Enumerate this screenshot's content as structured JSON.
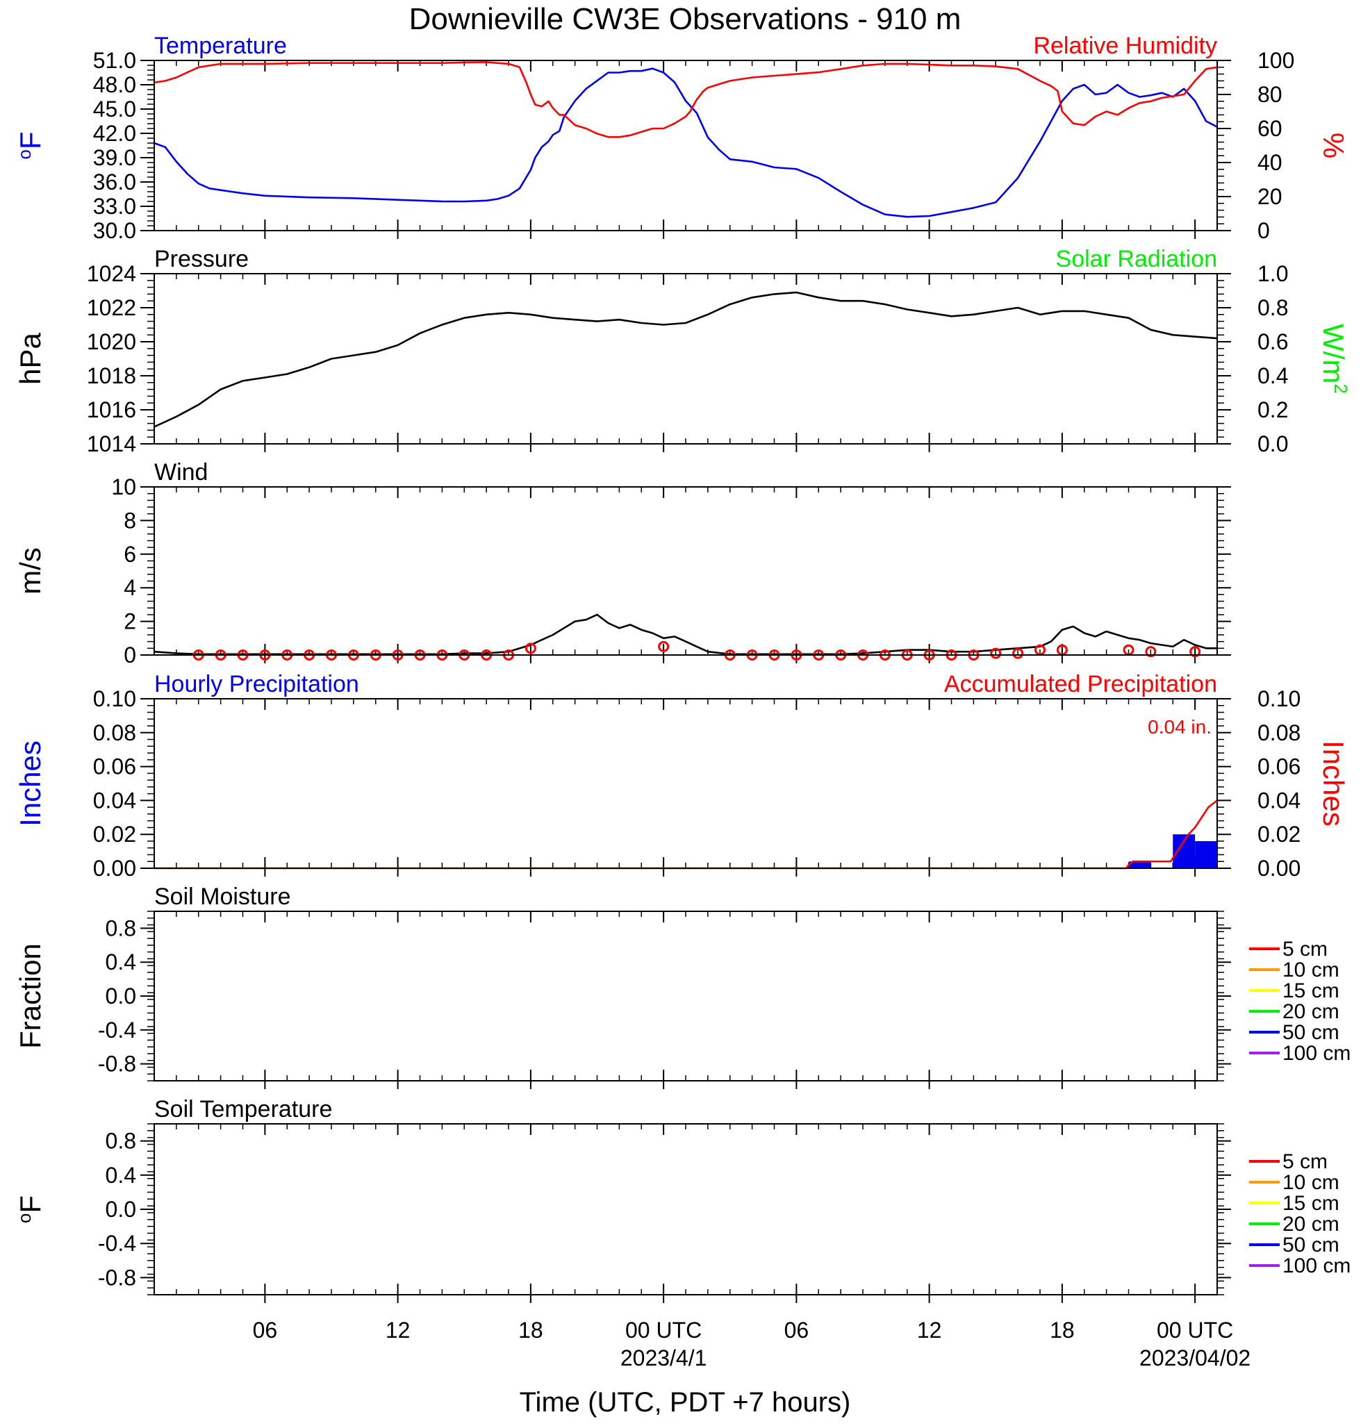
{
  "title": "Downieville CW3E Observations - 910 m",
  "xaxis": {
    "title": "Time (UTC, PDT +7 hours)",
    "range_hours": [
      -23,
      25
    ],
    "tick_hours": [
      -18,
      -12,
      -6,
      0,
      6,
      12,
      18,
      24
    ],
    "tick_labels": [
      "06",
      "12",
      "18",
      "00 UTC",
      "06",
      "12",
      "18",
      "00 UTC"
    ],
    "date_labels": [
      {
        "hour": 0,
        "text": "2023/4/1"
      },
      {
        "hour": 24,
        "text": "2023/04/02"
      }
    ]
  },
  "legend_soil": {
    "entries": [
      "5 cm",
      "10 cm",
      "15 cm",
      "20 cm",
      "50 cm",
      "100 cm"
    ],
    "colors": [
      "#ff0000",
      "#ff9900",
      "#ffff00",
      "#00ee00",
      "#0000ee",
      "#a020f0"
    ]
  },
  "chart_data": [
    {
      "type": "line",
      "title_left": "Temperature",
      "title_right": "Relative Humidity",
      "ylabel_left": "oF",
      "ylabel_right": "%",
      "ylim_left": [
        30,
        51
      ],
      "ylim_right": [
        0,
        100
      ],
      "yticks_left": [
        "30.0",
        "33.0",
        "36.0",
        "39.0",
        "42.0",
        "45.0",
        "48.0",
        "51.0"
      ],
      "yticks_right": [
        "0",
        "20",
        "40",
        "60",
        "80",
        "100"
      ],
      "series": [
        {
          "name": "Temperature",
          "color": "#0000ee",
          "axis": "left",
          "x": [
            -23,
            -22.5,
            -22,
            -21.5,
            -21,
            -20.5,
            -20,
            -19.5,
            -19,
            -18,
            -16,
            -14,
            -12,
            -10,
            -9,
            -8,
            -7.5,
            -7,
            -6.5,
            -6,
            -5.8,
            -5.5,
            -5.2,
            -5,
            -4.7,
            -4.5,
            -4,
            -3.5,
            -3,
            -2.5,
            -2,
            -1.5,
            -1,
            -0.5,
            0,
            0.5,
            1,
            1.5,
            2,
            2.5,
            3,
            4,
            5,
            6,
            7,
            8,
            9,
            10,
            11,
            12,
            13,
            14,
            15,
            16,
            17,
            18,
            18.5,
            19,
            19.5,
            20,
            20.5,
            21,
            21.5,
            22,
            22.5,
            23,
            23.5,
            24,
            24.5,
            25
          ],
          "y": [
            40.8,
            40.3,
            38.5,
            37.0,
            35.8,
            35.2,
            35.0,
            34.8,
            34.6,
            34.3,
            34.1,
            34.0,
            33.8,
            33.6,
            33.6,
            33.7,
            33.9,
            34.3,
            35.2,
            37.5,
            39.0,
            40.3,
            41.0,
            41.8,
            42.3,
            44.0,
            46.0,
            47.5,
            48.5,
            49.5,
            49.5,
            49.7,
            49.7,
            50.0,
            49.5,
            48.3,
            46.0,
            44.5,
            41.5,
            40.0,
            38.8,
            38.5,
            37.8,
            37.6,
            36.5,
            34.8,
            33.2,
            32.0,
            31.7,
            31.8,
            32.3,
            32.8,
            33.5,
            36.5,
            41.0,
            46.0,
            47.5,
            48.0,
            46.8,
            47.0,
            48.0,
            47.0,
            46.5,
            46.7,
            47.0,
            46.5,
            47.5,
            46.0,
            43.5,
            42.8
          ]
        },
        {
          "name": "Relative Humidity",
          "color": "#ff0000",
          "axis": "right",
          "x": [
            -23,
            -22.5,
            -22,
            -21,
            -20,
            -18,
            -16,
            -14,
            -12,
            -10,
            -9,
            -8,
            -7,
            -6.5,
            -6.2,
            -6,
            -5.8,
            -5.5,
            -5.2,
            -5,
            -4.7,
            -4.5,
            -4,
            -3.5,
            -3,
            -2.5,
            -2,
            -1.5,
            -1,
            -0.5,
            0,
            0.5,
            1,
            1.2,
            1.5,
            1.8,
            2,
            2.5,
            3,
            4,
            5,
            6,
            7,
            8,
            9,
            10,
            11,
            12,
            13,
            14,
            15,
            16,
            17,
            17.5,
            17.8,
            18,
            18.5,
            19,
            19.5,
            20,
            20.5,
            21,
            21.5,
            22,
            22.5,
            23,
            23.5,
            24,
            24.5,
            25
          ],
          "y": [
            87,
            88,
            90,
            96,
            98,
            98,
            98.5,
            98.5,
            98.5,
            98.5,
            98.8,
            99,
            98,
            96,
            87,
            80,
            74,
            73,
            76,
            72,
            68,
            68,
            62,
            60,
            57,
            55,
            55,
            56,
            58,
            60,
            60,
            63,
            67,
            70,
            77,
            82,
            84,
            86,
            88,
            90,
            91,
            92,
            93,
            95,
            97,
            98,
            98,
            97.5,
            97,
            97,
            96.5,
            95,
            88,
            85,
            82,
            70,
            63,
            62,
            67,
            70,
            68,
            72,
            75,
            76,
            78,
            79,
            80,
            88,
            95,
            96
          ]
        }
      ]
    },
    {
      "type": "line",
      "title_left": "Pressure",
      "title_right": "Solar Radiation",
      "ylabel_left": "hPa",
      "ylabel_right": "W/m2",
      "ylim_left": [
        1014,
        1024
      ],
      "ylim_right": [
        0,
        1
      ],
      "yticks_left": [
        "1014",
        "1016",
        "1018",
        "1020",
        "1022",
        "1024"
      ],
      "yticks_right": [
        "0.0",
        "0.2",
        "0.4",
        "0.6",
        "0.8",
        "1.0"
      ],
      "series": [
        {
          "name": "Pressure",
          "color": "#000000",
          "axis": "left",
          "x": [
            -23,
            -22,
            -21,
            -20,
            -19,
            -18,
            -17,
            -16,
            -15,
            -14,
            -13,
            -12,
            -11,
            -10,
            -9,
            -8,
            -7,
            -6,
            -5,
            -4,
            -3,
            -2,
            -1,
            0,
            1,
            2,
            3,
            4,
            5,
            6,
            7,
            8,
            9,
            10,
            11,
            12,
            13,
            14,
            15,
            16,
            17,
            18,
            19,
            20,
            21,
            22,
            23,
            24,
            25
          ],
          "y": [
            1015.0,
            1015.6,
            1016.3,
            1017.2,
            1017.7,
            1017.9,
            1018.1,
            1018.5,
            1019.0,
            1019.2,
            1019.4,
            1019.8,
            1020.5,
            1021.0,
            1021.4,
            1021.6,
            1021.7,
            1021.6,
            1021.4,
            1021.3,
            1021.2,
            1021.3,
            1021.1,
            1021.0,
            1021.1,
            1021.6,
            1022.2,
            1022.6,
            1022.8,
            1022.9,
            1022.6,
            1022.4,
            1022.4,
            1022.2,
            1021.9,
            1021.7,
            1021.5,
            1021.6,
            1021.8,
            1022.0,
            1021.6,
            1021.8,
            1021.8,
            1021.6,
            1021.4,
            1020.7,
            1020.4,
            1020.3,
            1020.2
          ]
        }
      ]
    },
    {
      "type": "line",
      "title_left": "Wind",
      "ylabel_left": "m/s",
      "ylim_left": [
        0,
        10
      ],
      "yticks_left": [
        "0",
        "2",
        "4",
        "6",
        "8",
        "10"
      ],
      "series": [
        {
          "name": "Wind speed",
          "color": "#000000",
          "axis": "left",
          "x": [
            -23,
            -22,
            -21,
            -20,
            -19,
            -18,
            -17,
            -16,
            -15,
            -14,
            -13,
            -12,
            -11,
            -10,
            -9,
            -8,
            -7,
            -6,
            -5.5,
            -5,
            -4.5,
            -4,
            -3.5,
            -3,
            -2.5,
            -2,
            -1.5,
            -1,
            -0.5,
            0,
            0.5,
            1,
            1.5,
            2,
            3,
            4,
            5,
            6,
            7,
            8,
            9,
            10,
            11,
            12,
            13,
            14,
            15,
            16,
            17,
            17.5,
            18,
            18.5,
            19,
            19.5,
            20,
            20.5,
            21,
            21.5,
            22,
            22.5,
            23,
            23.5,
            24,
            24.5,
            25
          ],
          "y": [
            0.2,
            0.1,
            0.05,
            0.05,
            0.05,
            0.05,
            0.05,
            0.05,
            0.05,
            0.05,
            0.05,
            0.05,
            0.05,
            0.05,
            0.1,
            0.1,
            0.2,
            0.6,
            0.9,
            1.2,
            1.6,
            2.0,
            2.1,
            2.4,
            1.9,
            1.6,
            1.8,
            1.5,
            1.3,
            1.0,
            1.1,
            0.8,
            0.5,
            0.2,
            0.05,
            0.05,
            0.05,
            0.05,
            0.05,
            0.05,
            0.1,
            0.2,
            0.3,
            0.3,
            0.2,
            0.2,
            0.3,
            0.4,
            0.5,
            0.8,
            1.5,
            1.7,
            1.3,
            1.1,
            1.4,
            1.2,
            1.0,
            0.9,
            0.7,
            0.6,
            0.5,
            0.9,
            0.6,
            0.4,
            0.4
          ]
        },
        {
          "name": "Hourly wind",
          "color": "#ff0000",
          "axis": "left",
          "x": [
            -21,
            -20,
            -19,
            -18,
            -17,
            -16,
            -15,
            -14,
            -13,
            -12,
            -11,
            -10,
            -9,
            -8,
            -7,
            -6,
            0,
            3,
            4,
            5,
            6,
            7,
            8,
            9,
            10,
            11,
            12,
            13,
            14,
            15,
            16,
            17,
            18,
            21,
            22,
            24
          ],
          "y": [
            0,
            0,
            0,
            0,
            0,
            0,
            0,
            0,
            0,
            0,
            0,
            0,
            0,
            0,
            0,
            0.4,
            0.5,
            0,
            0,
            0,
            0,
            0,
            0,
            0,
            0,
            0,
            0,
            0,
            0,
            0.1,
            0.1,
            0.3,
            0.3,
            0.3,
            0.2,
            0.2
          ]
        }
      ]
    },
    {
      "type": "bar",
      "title_left": "Hourly Precipitation",
      "title_right": "Accumulated Precipitation",
      "annotation": "0.04 in.",
      "ylabel_left": "Inches",
      "ylabel_right": "Inches",
      "ylim_left": [
        0,
        0.1
      ],
      "ylim_right": [
        0,
        0.1
      ],
      "yticks_left": [
        "0.00",
        "0.02",
        "0.04",
        "0.06",
        "0.08",
        "0.10"
      ],
      "yticks_right": [
        "0.00",
        "0.02",
        "0.04",
        "0.06",
        "0.08",
        "0.10"
      ],
      "series": [
        {
          "name": "Hourly Precipitation",
          "color": "#0000ee",
          "axis": "left",
          "bars": [
            {
              "start": 21,
              "end": 22,
              "value": 0.004
            },
            {
              "start": 23,
              "end": 24,
              "value": 0.02
            },
            {
              "start": 24,
              "end": 25,
              "value": 0.016
            }
          ]
        },
        {
          "name": "Accumulated Precipitation",
          "color": "#ff0000",
          "axis": "right",
          "x": [
            -23,
            20.9,
            21,
            21.2,
            22.9,
            23.1,
            23.3,
            23.5,
            23.7,
            24,
            24.3,
            24.6,
            25
          ],
          "y": [
            0,
            0,
            0.002,
            0.004,
            0.004,
            0.008,
            0.012,
            0.016,
            0.02,
            0.024,
            0.03,
            0.036,
            0.04
          ]
        }
      ]
    },
    {
      "type": "line",
      "title_left": "Soil Moisture",
      "ylabel_left": "Fraction",
      "ylim_left": [
        -1,
        1
      ],
      "yticks_left": [
        "-0.8",
        "-0.4",
        "0.0",
        "0.4",
        "0.8"
      ],
      "series": []
    },
    {
      "type": "line",
      "title_left": "Soil Temperature",
      "ylabel_left": "oF",
      "ylim_left": [
        -1,
        1
      ],
      "yticks_left": [
        "-0.8",
        "-0.4",
        "0.0",
        "0.4",
        "0.8"
      ],
      "series": []
    }
  ]
}
